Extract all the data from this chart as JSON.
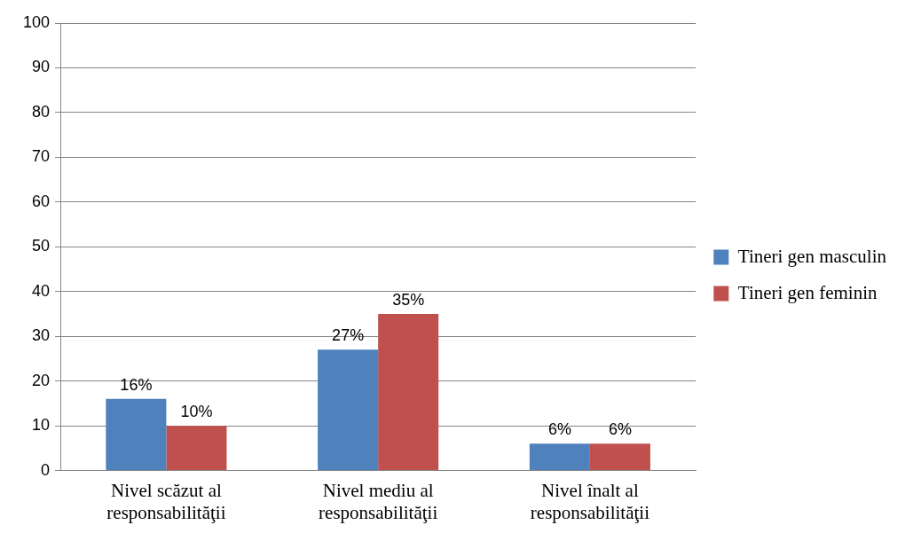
{
  "chart_data": {
    "type": "bar",
    "categories": [
      "Nivel scăzut al responsabilităţii",
      "Nivel mediu al responsabilităţii",
      "Nivel înalt al responsabilităţii"
    ],
    "series": [
      {
        "name": "Tineri gen masculin",
        "color": "#4f81bd",
        "values": [
          16,
          27,
          6
        ],
        "value_labels": [
          "16%",
          "27%",
          "6%"
        ]
      },
      {
        "name": "Tineri gen feminin",
        "color": "#c0504d",
        "values": [
          10,
          35,
          6
        ],
        "value_labels": [
          "10%",
          "35%",
          "6%"
        ]
      }
    ],
    "ylim": [
      0,
      100
    ],
    "yticks": [
      0,
      10,
      20,
      30,
      40,
      50,
      60,
      70,
      80,
      90,
      100
    ],
    "grid": "y",
    "legend": "right"
  }
}
